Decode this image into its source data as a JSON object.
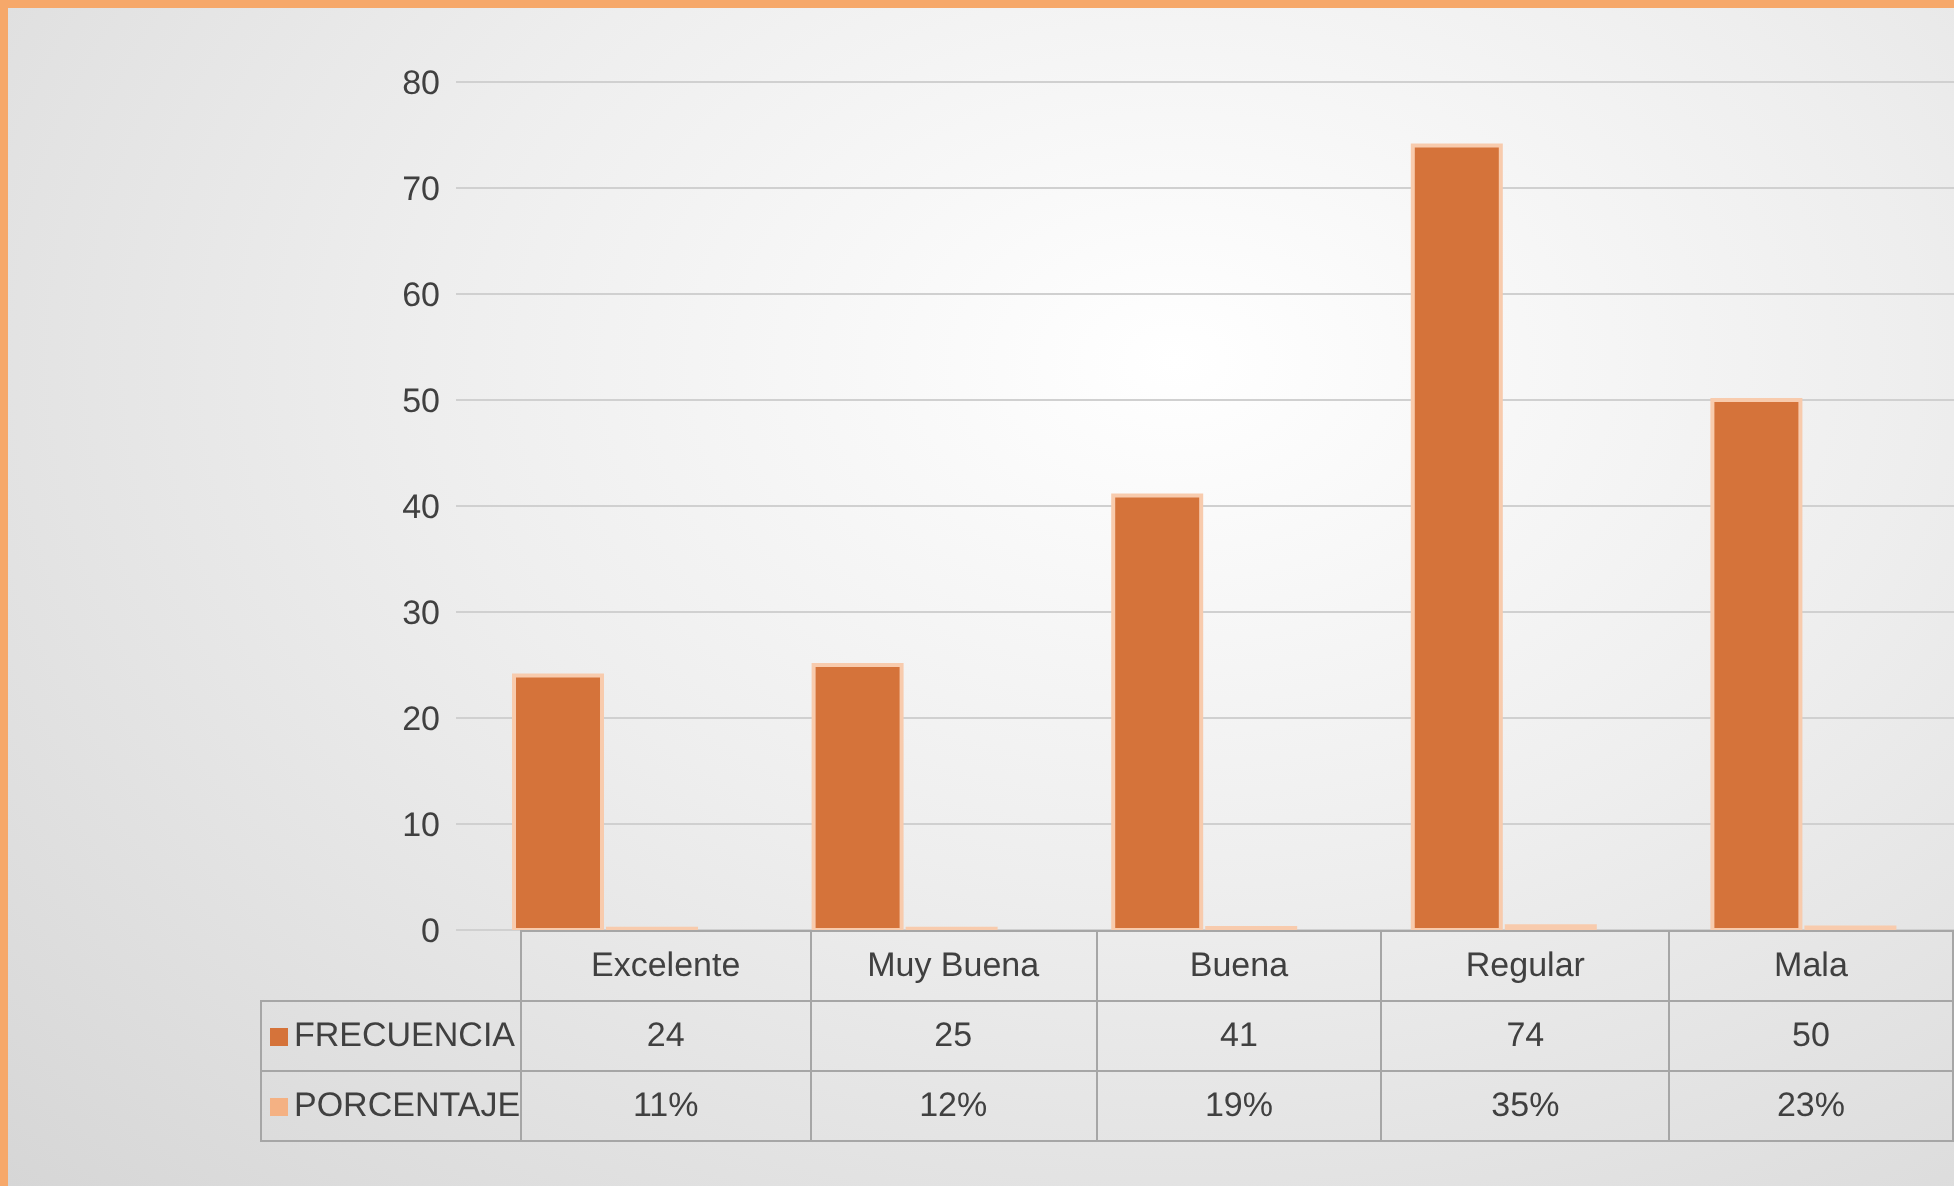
{
  "chart_data": {
    "type": "bar",
    "categories": [
      "Excelente",
      "Muy Buena",
      "Buena",
      "Regular",
      "Mala"
    ],
    "series": [
      {
        "name": "FRECUENCIA",
        "color": "#d5733a",
        "values": [
          24,
          25,
          41,
          74,
          50
        ],
        "value_labels": [
          "24",
          "25",
          "41",
          "74",
          "50"
        ]
      },
      {
        "name": "PORCENTAJE",
        "color": "#f4b183",
        "values": [
          0.11,
          0.12,
          0.19,
          0.35,
          0.23
        ],
        "value_labels": [
          "11%",
          "12%",
          "19%",
          "35%",
          "23%"
        ]
      }
    ],
    "ylim": [
      0,
      80
    ],
    "yticks": [
      0,
      10,
      20,
      30,
      40,
      50,
      60,
      70,
      80
    ],
    "grid": "y",
    "legend": "bottom"
  }
}
